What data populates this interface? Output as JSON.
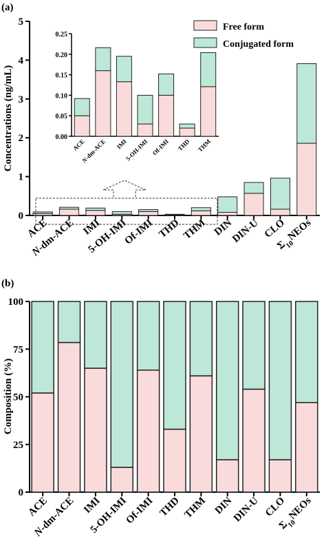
{
  "colors": {
    "free": "#fadbdb",
    "conjugated": "#bde8d8",
    "edge": "#222222"
  },
  "chart_data": [
    {
      "panel": "(a)",
      "type": "bar",
      "stacked": true,
      "ylabel": "Concentrations (ng/mL)",
      "ylim": [
        0,
        5
      ],
      "yticks": [
        "0",
        "1",
        "2",
        "3",
        "4",
        "5"
      ],
      "categories": [
        "ACE",
        "N-dm-ACE",
        "IMI",
        "5-OH-IMI",
        "Of-IMI",
        "THD",
        "THM",
        "DIN",
        "DIN-U",
        "CLO",
        "Σ10NEOs"
      ],
      "series": [
        {
          "name": "Free form",
          "values": [
            0.05,
            0.16,
            0.13,
            0.03,
            0.1,
            0.02,
            0.12,
            0.08,
            0.57,
            0.16,
            1.86
          ]
        },
        {
          "name": "Conjugated form",
          "values": [
            0.04,
            0.05,
            0.06,
            0.07,
            0.05,
            0.01,
            0.08,
            0.4,
            0.28,
            0.8,
            2.05
          ]
        }
      ],
      "legend_position": "top-right",
      "inset": {
        "categories": [
          "ACE",
          "N-dm-ACE",
          "IMI",
          "5-OH-IMI",
          "Of-IMI",
          "THD",
          "THM"
        ],
        "ylim": [
          0,
          0.25
        ],
        "yticks": [
          "0.00",
          "0.05",
          "0.10",
          "0.15",
          "0.20",
          "0.25"
        ],
        "free": [
          0.05,
          0.16,
          0.133,
          0.03,
          0.1,
          0.02,
          0.121
        ],
        "total": [
          0.092,
          0.216,
          0.195,
          0.1,
          0.152,
          0.03,
          0.204
        ]
      }
    },
    {
      "panel": "(b)",
      "type": "bar",
      "stacked": true,
      "ylabel": "Composition (%)",
      "ylim": [
        0,
        100
      ],
      "yticks": [
        "0",
        "25",
        "50",
        "75",
        "100"
      ],
      "categories": [
        "ACE",
        "N-dm-ACE",
        "IMI",
        "5-OH-IMI",
        "Of-IMI",
        "THD",
        "THM",
        "DIN",
        "DIN-U",
        "CLO",
        "Σ10NEOs"
      ],
      "series": [
        {
          "name": "Free form",
          "values": [
            52,
            78.5,
            65,
            13,
            64,
            33,
            61,
            17,
            54,
            17,
            47
          ]
        },
        {
          "name": "Conjugated form",
          "values": [
            48,
            21.5,
            35,
            87,
            36,
            67,
            39,
            83,
            46,
            83,
            53
          ]
        }
      ]
    }
  ]
}
